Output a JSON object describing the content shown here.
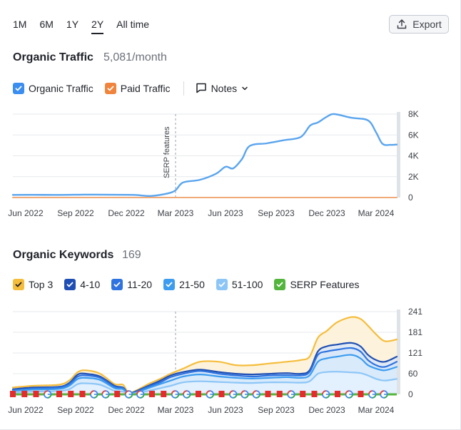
{
  "period_tabs": [
    {
      "label": "1M",
      "active": false
    },
    {
      "label": "6M",
      "active": false
    },
    {
      "label": "1Y",
      "active": false
    },
    {
      "label": "2Y",
      "active": true
    },
    {
      "label": "All time",
      "active": false
    }
  ],
  "export_label": "Export",
  "traffic": {
    "title": "Organic Traffic",
    "value": "5,081/month",
    "legend": [
      {
        "label": "Organic Traffic",
        "color": "#3b8ef0"
      },
      {
        "label": "Paid Traffic",
        "color": "#f0843c"
      }
    ],
    "notes_label": "Notes"
  },
  "keywords": {
    "title": "Organic Keywords",
    "value": "169",
    "legend": [
      {
        "label": "Top 3",
        "color": "#f5bd3c"
      },
      {
        "label": "4-10",
        "color": "#1f4fb3"
      },
      {
        "label": "11-20",
        "color": "#2e73e0"
      },
      {
        "label": "21-50",
        "color": "#3b9cf0"
      },
      {
        "label": "51-100",
        "color": "#8cc6f7"
      },
      {
        "label": "SERP Features",
        "color": "#53b53c"
      }
    ]
  },
  "chart_data": [
    {
      "type": "line",
      "x": [
        "2022-05-01",
        "2022-06-15",
        "2022-08-01",
        "2022-09-15",
        "2022-11-01",
        "2022-12-15",
        "2023-01-15",
        "2023-02-15",
        "2023-03-01",
        "2023-03-15",
        "2023-04-15",
        "2023-05-15",
        "2023-06-01",
        "2023-06-15",
        "2023-07-01",
        "2023-07-15",
        "2023-08-15",
        "2023-09-15",
        "2023-10-15",
        "2023-11-01",
        "2023-11-15",
        "2023-12-01",
        "2023-12-15",
        "2024-01-15",
        "2024-02-15",
        "2024-03-01",
        "2024-03-15",
        "2024-04-01",
        "2024-04-15"
      ],
      "series": [
        {
          "name": "Organic Traffic",
          "color": "#5aa5ee",
          "values": [
            250,
            260,
            250,
            280,
            270,
            250,
            150,
            400,
            700,
            1450,
            1700,
            2300,
            2950,
            2800,
            3700,
            4950,
            5200,
            5500,
            5800,
            6900,
            7200,
            7750,
            8000,
            7650,
            7400,
            6250,
            5150,
            5050,
            5081
          ]
        },
        {
          "name": "Paid Traffic",
          "color": "#f0a977",
          "values": [
            0,
            0,
            0,
            0,
            0,
            0,
            0,
            0,
            0,
            0,
            0,
            0,
            0,
            0,
            0,
            0,
            0,
            0,
            0,
            0,
            0,
            0,
            0,
            0,
            0,
            0,
            0,
            0,
            0
          ]
        }
      ],
      "x_ticks": [
        "Jun 2022",
        "Sep 2022",
        "Dec 2022",
        "Mar 2023",
        "Jun 2023",
        "Sep 2023",
        "Dec 2023",
        "Mar 2024"
      ],
      "y_ticks": [
        "0",
        "2K",
        "4K",
        "6K",
        "8K"
      ],
      "ylim": [
        0,
        8000
      ],
      "annotation": {
        "label": "SERP features",
        "x": "2023-03-01"
      },
      "grid": true
    },
    {
      "type": "area",
      "x": [
        "2022-05-01",
        "2022-06-15",
        "2022-08-01",
        "2022-08-20",
        "2022-09-05",
        "2022-09-20",
        "2022-10-15",
        "2022-11-10",
        "2022-11-25",
        "2022-12-05",
        "2022-12-20",
        "2023-01-10",
        "2023-02-01",
        "2023-02-20",
        "2023-03-15",
        "2023-04-15",
        "2023-05-20",
        "2023-06-20",
        "2023-07-20",
        "2023-08-20",
        "2023-09-20",
        "2023-10-15",
        "2023-10-31",
        "2023-11-15",
        "2023-12-01",
        "2023-12-20",
        "2024-01-15",
        "2024-02-01",
        "2024-02-15",
        "2024-03-01",
        "2024-03-20",
        "2024-04-15"
      ],
      "series": [
        {
          "name": "Top 3",
          "color": "#f5bd3c",
          "values": [
            20,
            25,
            28,
            40,
            65,
            70,
            60,
            30,
            28,
            5,
            12,
            30,
            45,
            60,
            75,
            95,
            95,
            85,
            85,
            90,
            95,
            100,
            110,
            165,
            185,
            210,
            225,
            220,
            200,
            175,
            155,
            160
          ]
        },
        {
          "name": "4-10",
          "color": "#1f4fb3",
          "values": [
            15,
            20,
            22,
            33,
            58,
            60,
            52,
            25,
            20,
            3,
            10,
            25,
            40,
            55,
            65,
            72,
            65,
            60,
            58,
            60,
            62,
            60,
            70,
            125,
            140,
            145,
            150,
            140,
            115,
            100,
            95,
            110
          ]
        },
        {
          "name": "11-20",
          "color": "#2e73e0",
          "values": [
            12,
            17,
            20,
            30,
            52,
            55,
            48,
            22,
            18,
            2,
            8,
            22,
            35,
            50,
            60,
            68,
            60,
            55,
            52,
            55,
            56,
            55,
            65,
            115,
            125,
            130,
            135,
            125,
            100,
            85,
            80,
            95
          ]
        },
        {
          "name": "21-50",
          "color": "#3b9cf0",
          "values": [
            10,
            14,
            16,
            25,
            45,
            48,
            42,
            18,
            15,
            2,
            6,
            18,
            30,
            40,
            52,
            58,
            52,
            48,
            46,
            48,
            50,
            48,
            55,
            95,
            105,
            110,
            115,
            105,
            85,
            75,
            70,
            80
          ]
        },
        {
          "name": "51-100",
          "color": "#8cc6f7",
          "values": [
            5,
            8,
            10,
            15,
            30,
            32,
            28,
            10,
            8,
            1,
            4,
            10,
            18,
            25,
            35,
            38,
            36,
            34,
            33,
            35,
            35,
            34,
            38,
            60,
            65,
            66,
            64,
            62,
            55,
            45,
            40,
            45
          ]
        }
      ],
      "serp_features": {
        "name": "SERP Features",
        "color": "#53b53c",
        "value": 0
      },
      "x_ticks": [
        "Jun 2022",
        "Sep 2022",
        "Dec 2022",
        "Mar 2023",
        "Jun 2023",
        "Sep 2023",
        "Dec 2023",
        "Mar 2024"
      ],
      "y_ticks": [
        "0",
        "60",
        "121",
        "181",
        "241"
      ],
      "ylim": [
        0,
        241
      ],
      "annotation_x": "2023-03-01",
      "grid": true
    }
  ]
}
